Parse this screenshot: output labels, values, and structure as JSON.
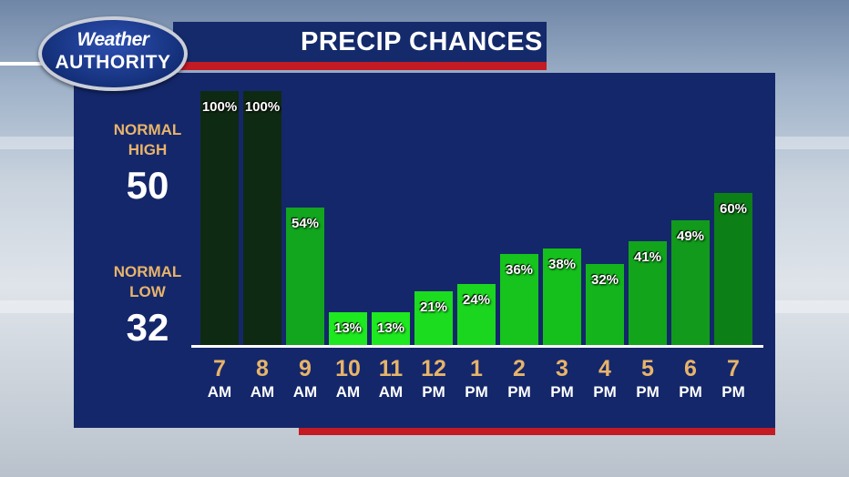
{
  "logo": {
    "line1": "Weather",
    "line2": "AUTHORITY"
  },
  "header": {
    "title": "PRECIP CHANCES"
  },
  "normals": {
    "high_label_1": "NORMAL",
    "high_label_2": "HIGH",
    "high_value": "50",
    "low_label_1": "NORMAL",
    "low_label_2": "LOW",
    "low_value": "32"
  },
  "colors": {
    "panel": "#14276a",
    "accent_red": "#c41a24",
    "label_gold": "#e8b46a"
  },
  "chart_data": {
    "type": "bar",
    "title": "PRECIP CHANCES",
    "unit": "%",
    "ylim": [
      0,
      100
    ],
    "categories": [
      {
        "hour": "7",
        "period": "AM"
      },
      {
        "hour": "8",
        "period": "AM"
      },
      {
        "hour": "9",
        "period": "AM"
      },
      {
        "hour": "10",
        "period": "AM"
      },
      {
        "hour": "11",
        "period": "AM"
      },
      {
        "hour": "12",
        "period": "PM"
      },
      {
        "hour": "1",
        "period": "PM"
      },
      {
        "hour": "2",
        "period": "PM"
      },
      {
        "hour": "3",
        "period": "PM"
      },
      {
        "hour": "4",
        "period": "PM"
      },
      {
        "hour": "5",
        "period": "PM"
      },
      {
        "hour": "6",
        "period": "PM"
      },
      {
        "hour": "7",
        "period": "PM"
      }
    ],
    "values": [
      100,
      100,
      54,
      13,
      13,
      21,
      24,
      36,
      38,
      32,
      41,
      49,
      60
    ],
    "labels": [
      "100%",
      "100%",
      "54%",
      "13%",
      "13%",
      "21%",
      "24%",
      "36%",
      "38%",
      "32%",
      "41%",
      "49%",
      "60%"
    ],
    "bar_colors": [
      "#0f2a12",
      "#0f2a12",
      "#12a51e",
      "#1ee81f",
      "#1ee81f",
      "#1cdc1f",
      "#1ad61e",
      "#16c41d",
      "#15bf1c",
      "#14b41c",
      "#12a51c",
      "#119a1b",
      "#0d7f17"
    ]
  }
}
